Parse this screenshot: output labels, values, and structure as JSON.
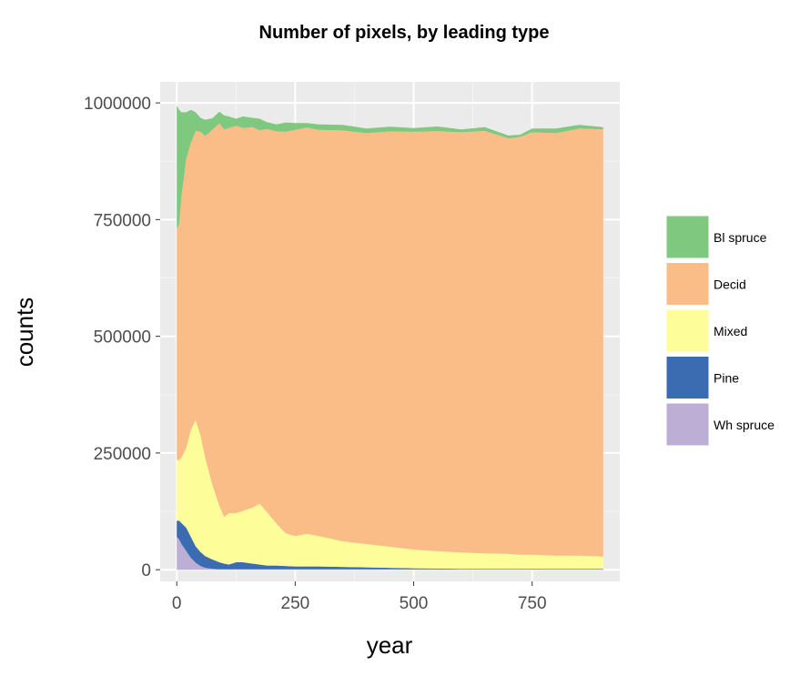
{
  "chart_data": {
    "type": "area",
    "stacked": true,
    "title": "Number of pixels, by leading type",
    "xlabel": "year",
    "ylabel": "counts",
    "xlim": [
      -35,
      935
    ],
    "ylim": [
      -25000,
      1045000
    ],
    "x_ticks": [
      0,
      250,
      500,
      750
    ],
    "x_tick_labels": [
      "0",
      "250",
      "500",
      "750"
    ],
    "y_ticks": [
      0,
      250000,
      500000,
      750000,
      1000000
    ],
    "y_tick_labels": [
      "0",
      "250000",
      "500000",
      "750000",
      "1000000"
    ],
    "grid": true,
    "legend_position": "right",
    "x": [
      0,
      5,
      10,
      20,
      30,
      40,
      50,
      60,
      75,
      90,
      100,
      110,
      125,
      140,
      160,
      175,
      190,
      210,
      230,
      250,
      275,
      300,
      350,
      400,
      450,
      500,
      550,
      600,
      650,
      700,
      725,
      750,
      800,
      850,
      900
    ],
    "series": [
      {
        "name": "Wh spruce",
        "color": "#bcaed5",
        "values": [
          70000,
          65000,
          55000,
          40000,
          25000,
          15000,
          8000,
          4000,
          2000,
          1000,
          1000,
          1000,
          1000,
          1000,
          1000,
          1000,
          1000,
          1000,
          1000,
          1000,
          1000,
          1000,
          1000,
          1000,
          1000,
          1000,
          1000,
          1000,
          1000,
          1000,
          1000,
          1000,
          1000,
          1000,
          1000
        ]
      },
      {
        "name": "Pine",
        "color": "#3b6bb0",
        "values": [
          35000,
          40000,
          45000,
          50000,
          45000,
          35000,
          30000,
          25000,
          20000,
          15000,
          12000,
          10000,
          15000,
          15000,
          12000,
          10000,
          8000,
          8000,
          7000,
          6000,
          6000,
          6000,
          5000,
          4000,
          3000,
          2000,
          1500,
          1000,
          1000,
          1000,
          1000,
          1000,
          1000,
          1000,
          1000
        ]
      },
      {
        "name": "Mixed",
        "color": "#fdfe9a",
        "values": [
          130000,
          130000,
          140000,
          170000,
          230000,
          270000,
          250000,
          210000,
          160000,
          120000,
          100000,
          110000,
          105000,
          110000,
          120000,
          130000,
          115000,
          90000,
          70000,
          65000,
          70000,
          65000,
          55000,
          50000,
          45000,
          40000,
          37000,
          35000,
          33000,
          32000,
          30000,
          30000,
          28000,
          28000,
          26000
        ]
      },
      {
        "name": "Decid",
        "color": "#fbbd87",
        "values": [
          495000,
          505000,
          560000,
          620000,
          615000,
          620000,
          650000,
          690000,
          760000,
          820000,
          830000,
          825000,
          830000,
          820000,
          815000,
          800000,
          820000,
          840000,
          860000,
          870000,
          870000,
          870000,
          880000,
          880000,
          890000,
          895000,
          900000,
          900000,
          905000,
          890000,
          895000,
          905000,
          905000,
          915000,
          915000
        ]
      },
      {
        "name": "Bl spruce",
        "color": "#7fc87f",
        "values": [
          265000,
          245000,
          180000,
          100000,
          70000,
          40000,
          30000,
          35000,
          25000,
          25000,
          30000,
          25000,
          15000,
          25000,
          20000,
          25000,
          15000,
          15000,
          20000,
          15000,
          10000,
          12000,
          12000,
          10000,
          10000,
          8000,
          10000,
          6000,
          8000,
          6000,
          5000,
          8000,
          10000,
          8000,
          5000
        ]
      }
    ]
  }
}
